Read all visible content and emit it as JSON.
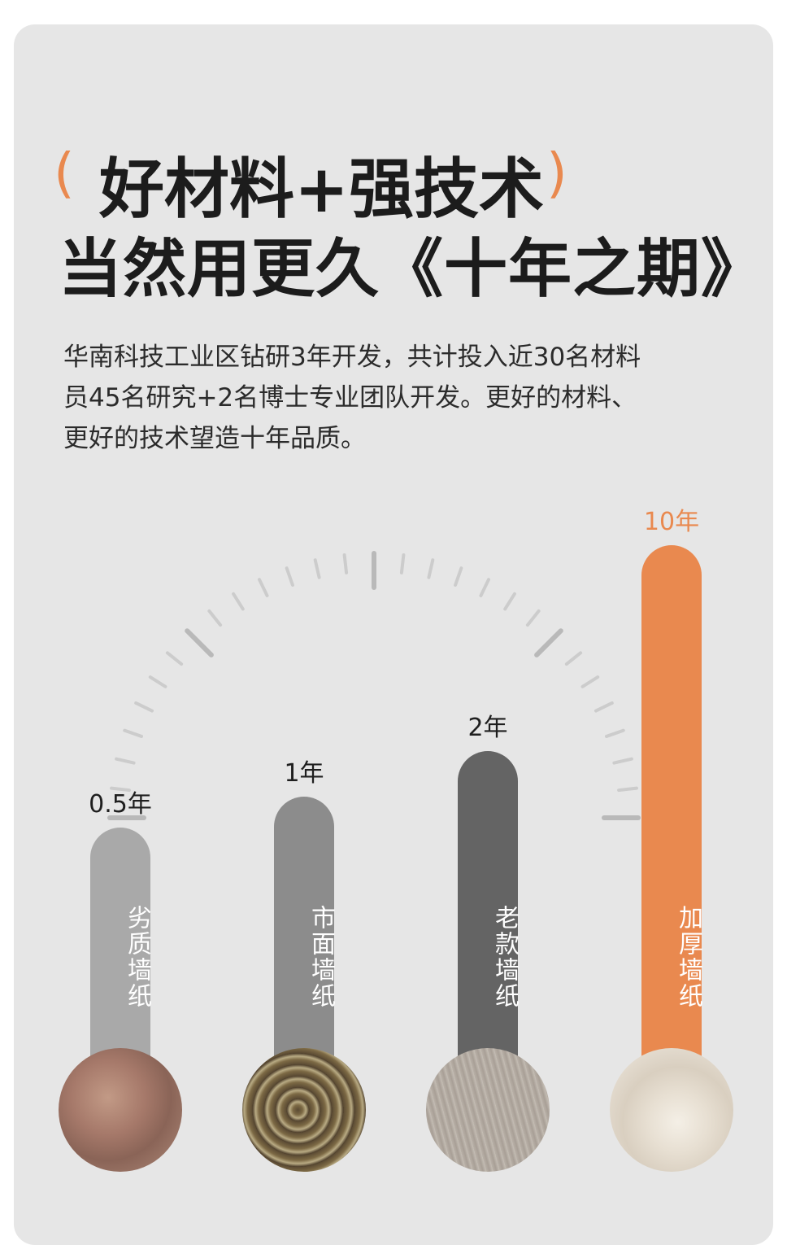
{
  "header": {
    "paren_open": "(",
    "title_line1": "好材料+强技术",
    "paren_close": ")",
    "title_line2": "当然用更久《十年之期》"
  },
  "description": "华南科技工业区钻研3年开发，共计投入近30名材料员45名研究+2名博士专业团队开发。更好的材料、更好的技术望造十年品质。",
  "colors": {
    "accent": "#e9894f",
    "card_bg": "#e6e6e6",
    "tick": "#cccccc",
    "tick_major": "#b9b9b9"
  },
  "chart_data": {
    "type": "bar",
    "categories": [
      "劣质墙纸",
      "市面墙纸",
      "老款墙纸",
      "加厚墙纸"
    ],
    "values": [
      0.5,
      1,
      2,
      10
    ],
    "value_labels": [
      "0.5年",
      "1年",
      "2年",
      "10年"
    ],
    "bar_colors": [
      "#a9a9a9",
      "#8c8c8c",
      "#646464",
      "#e9894f"
    ],
    "photos": [
      "crack-wall-photo",
      "old-rolled-wallpaper-photo",
      "grey-wallpaper-roll-photo",
      "cream-wallpaper-roll-photo"
    ],
    "grid": false
  }
}
